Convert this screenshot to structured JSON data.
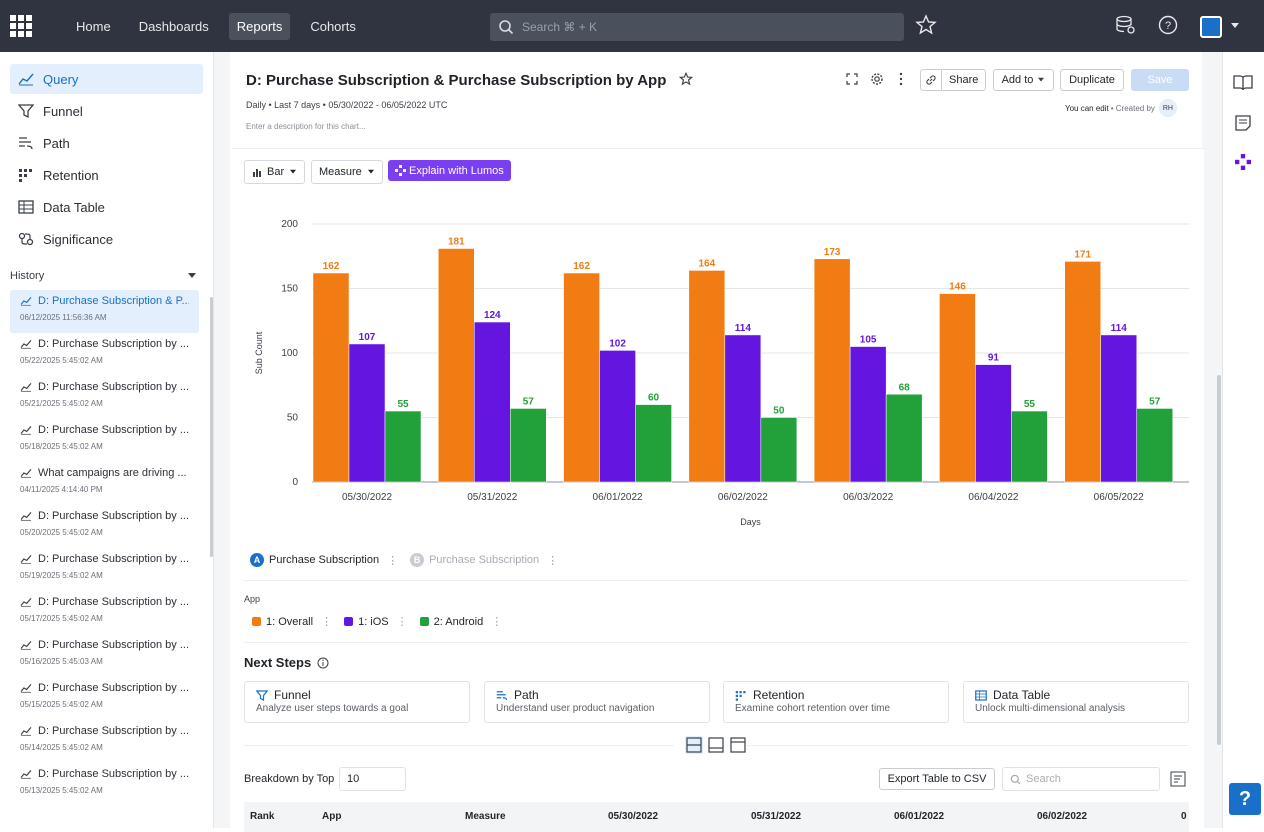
{
  "nav": {
    "items": [
      "Home",
      "Dashboards",
      "Reports",
      "Cohorts"
    ],
    "active_index": 2,
    "search_placeholder": "Search ⌘ + K"
  },
  "sidebar": {
    "menu": [
      {
        "label": "Query",
        "icon": "line-chart-icon"
      },
      {
        "label": "Funnel",
        "icon": "funnel-icon"
      },
      {
        "label": "Path",
        "icon": "path-icon"
      },
      {
        "label": "Retention",
        "icon": "retention-icon"
      },
      {
        "label": "Data Table",
        "icon": "table-icon"
      },
      {
        "label": "Significance",
        "icon": "significance-icon"
      }
    ],
    "history_title": "History",
    "history": [
      {
        "title": "D: Purchase Subscription & P...",
        "date": "06/12/2025 11:56:36 AM"
      },
      {
        "title": "D: Purchase Subscription by ...",
        "date": "05/22/2025 5:45:02 AM"
      },
      {
        "title": "D: Purchase Subscription by ...",
        "date": "05/21/2025 5:45:02 AM"
      },
      {
        "title": "D: Purchase Subscription by ...",
        "date": "05/18/2025 5:45:02 AM"
      },
      {
        "title": "What campaigns are driving ...",
        "date": "04/11/2025 4:14:40 PM"
      },
      {
        "title": "D: Purchase Subscription by ...",
        "date": "05/20/2025 5:45:02 AM"
      },
      {
        "title": "D: Purchase Subscription by ...",
        "date": "05/19/2025 5:45:02 AM"
      },
      {
        "title": "D: Purchase Subscription by ...",
        "date": "05/17/2025 5:45:02 AM"
      },
      {
        "title": "D: Purchase Subscription by ...",
        "date": "05/16/2025 5:45:03 AM"
      },
      {
        "title": "D: Purchase Subscription by ...",
        "date": "05/15/2025 5:45:02 AM"
      },
      {
        "title": "D: Purchase Subscription by ...",
        "date": "05/14/2025 5:45:02 AM"
      },
      {
        "title": "D: Purchase Subscription by ...",
        "date": "05/13/2025 5:45:02 AM"
      }
    ]
  },
  "report": {
    "title": "D: Purchase Subscription & Purchase Subscription by App",
    "subtitle": "Daily • Last 7 days • 05/30/2022 - 06/05/2022 UTC",
    "description_placeholder": "Enter a description for this chart...",
    "share_label": "Share",
    "add_to_label": "Add to",
    "duplicate_label": "Duplicate",
    "save_label": "Save",
    "you_can_edit": "You can edit",
    "created_by": "• Created by",
    "creator_initials": "RH"
  },
  "toolbar": {
    "chart_type": "Bar",
    "measure": "Measure",
    "lumos": "Explain with Lumos"
  },
  "metrics": [
    {
      "letter": "A",
      "label": "Purchase Subscription",
      "color": "#1a6fc9",
      "enabled": true
    },
    {
      "letter": "B",
      "label": "Purchase Subscription",
      "color": "#c9ccd1",
      "enabled": false
    }
  ],
  "breakdown": {
    "title": "App",
    "items": [
      {
        "label": "1: Overall",
        "color": "#f07c13"
      },
      {
        "label": "1: iOS",
        "color": "#6416e0"
      },
      {
        "label": "2: Android",
        "color": "#22a03a"
      }
    ]
  },
  "chart_data": {
    "type": "bar",
    "categories": [
      "05/30/2022",
      "05/31/2022",
      "06/01/2022",
      "06/02/2022",
      "06/03/2022",
      "06/04/2022",
      "06/05/2022"
    ],
    "series": [
      {
        "name": "1: Overall",
        "color": "#f07c13",
        "values": [
          162,
          181,
          162,
          164,
          173,
          146,
          171
        ]
      },
      {
        "name": "1: iOS",
        "color": "#6416e0",
        "values": [
          107,
          124,
          102,
          114,
          105,
          91,
          114
        ]
      },
      {
        "name": "2: Android",
        "color": "#22a03a",
        "values": [
          55,
          57,
          60,
          50,
          68,
          55,
          57
        ]
      }
    ],
    "xlabel": "Days",
    "ylabel": "Sub Count",
    "ylim": [
      0,
      200
    ],
    "yticks": [
      0,
      50,
      100,
      150,
      200
    ],
    "grid": true,
    "data_labels": true
  },
  "next_steps": {
    "title": "Next Steps",
    "cards": [
      {
        "title": "Funnel",
        "subtitle": "Analyze user steps towards a goal",
        "icon": "funnel-icon"
      },
      {
        "title": "Path",
        "subtitle": "Understand user product navigation",
        "icon": "path-icon"
      },
      {
        "title": "Retention",
        "subtitle": "Examine cohort retention over time",
        "icon": "retention-icon"
      },
      {
        "title": "Data Table",
        "subtitle": "Unlock multi-dimensional analysis",
        "icon": "table-icon"
      }
    ]
  },
  "table": {
    "breakdown_label": "Breakdown by Top",
    "breakdown_value": "10",
    "export_label": "Export Table to CSV",
    "search_placeholder": "Search",
    "columns": [
      "Rank",
      "App",
      "Measure",
      "05/30/2022",
      "05/31/2022",
      "06/01/2022",
      "06/02/2022",
      "0"
    ]
  }
}
